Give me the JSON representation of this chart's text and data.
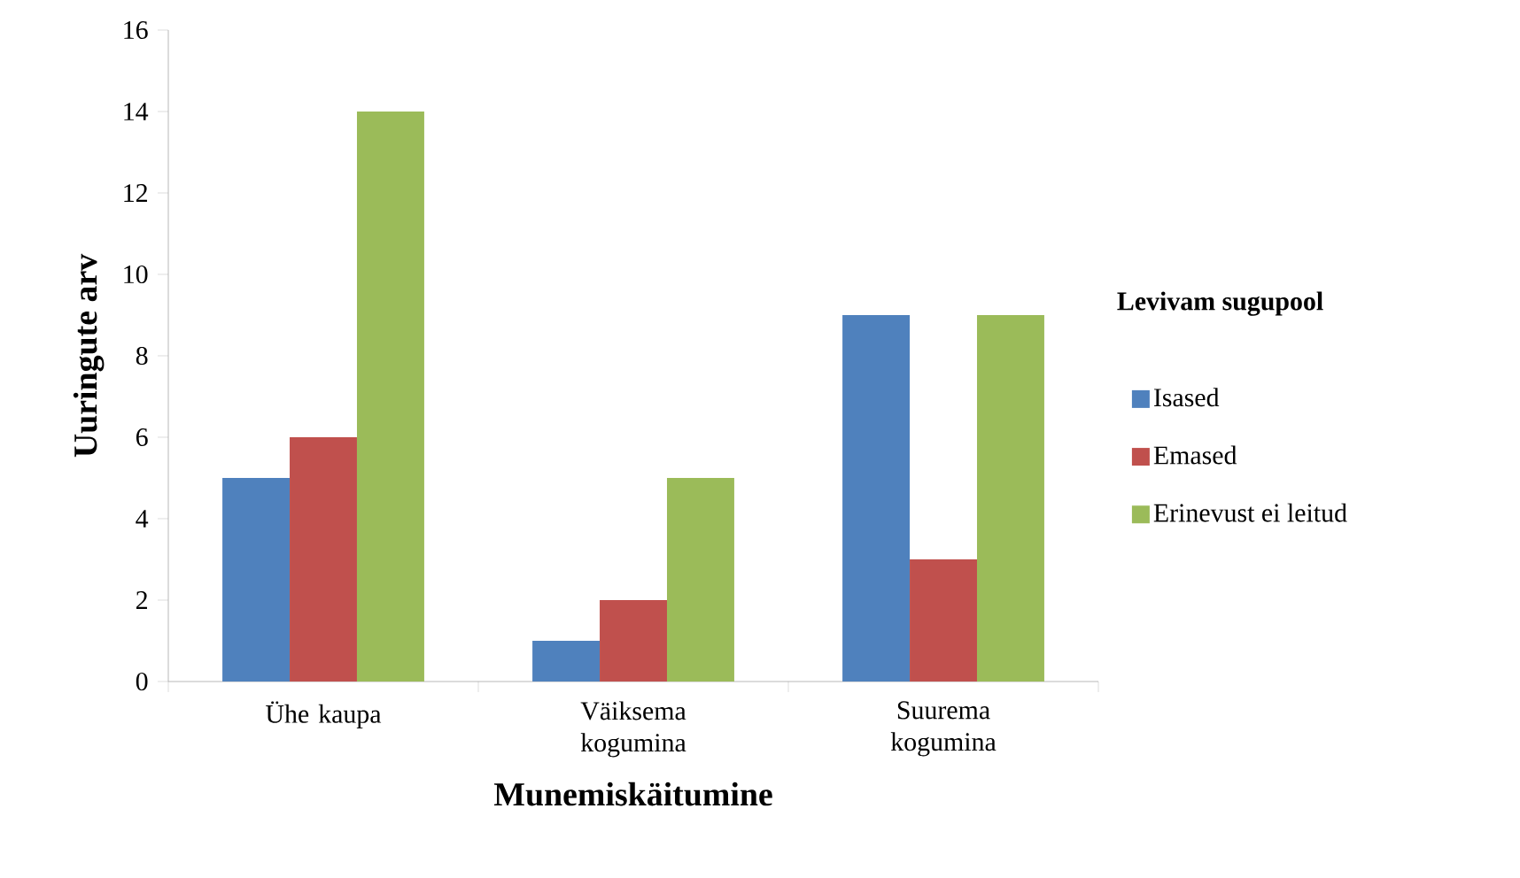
{
  "chart_data": {
    "type": "bar",
    "xlabel": "Munemiskäitumine",
    "ylabel": "Uuringute arv",
    "legend_title": "Levivam sugupool",
    "categories": [
      "Ühe kaupa",
      "Väiksema kogumina",
      "Suurema kogumina"
    ],
    "series": [
      {
        "name": "Isased",
        "color": "#4f81bd",
        "values": [
          5,
          1,
          9
        ]
      },
      {
        "name": "Emased",
        "color": "#c0504d",
        "values": [
          6,
          2,
          3
        ]
      },
      {
        "name": "Erinevust ei leitud",
        "color": "#9bbb59",
        "values": [
          14,
          5,
          9
        ]
      }
    ],
    "ylim": [
      0,
      16
    ],
    "yticks": [
      0,
      2,
      4,
      6,
      8,
      10,
      12,
      14,
      16
    ],
    "grid": false,
    "legend": "right"
  }
}
